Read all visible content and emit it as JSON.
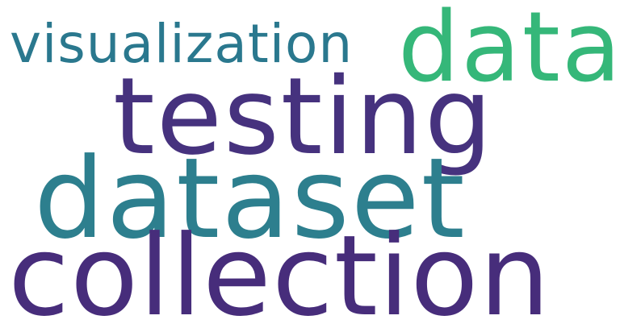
{
  "words": [
    {
      "text": "visualization",
      "color": "#2a788e"
    },
    {
      "text": "data",
      "color": "#35b779"
    },
    {
      "text": "testing",
      "color": "#46327e"
    },
    {
      "text": "dataset",
      "color": "#2d7f8e"
    },
    {
      "text": "collection",
      "color": "#472d7b"
    }
  ]
}
